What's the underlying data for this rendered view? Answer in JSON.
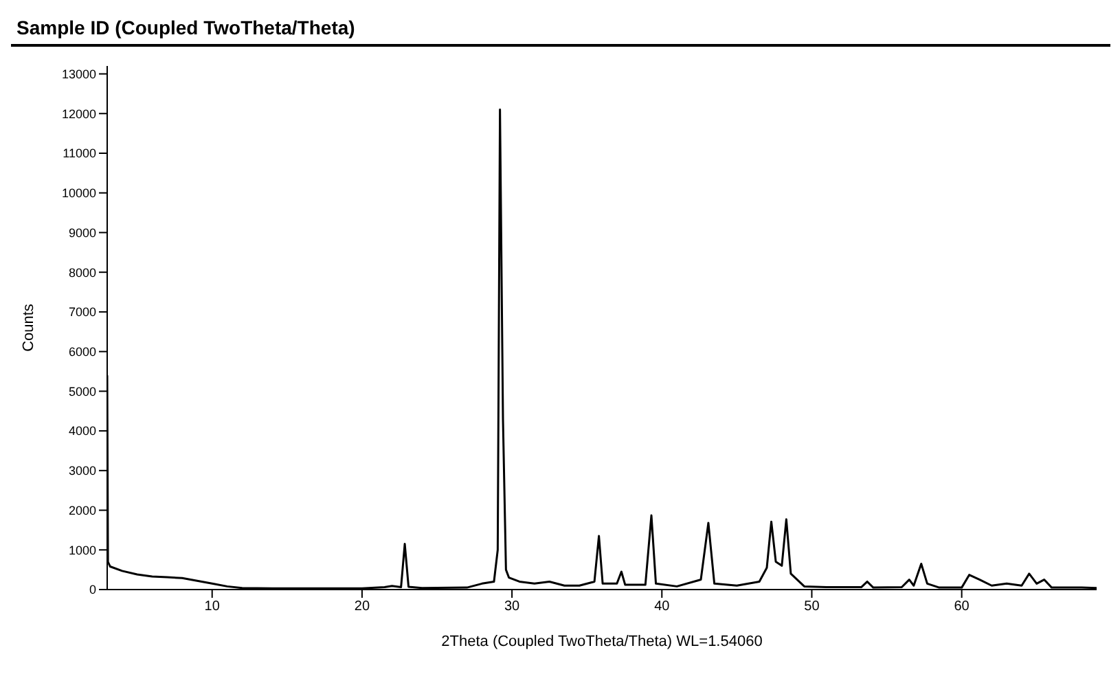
{
  "chart_data": {
    "type": "line",
    "title": "Sample ID (Coupled TwoTheta/Theta)",
    "xlabel": "2Theta (Coupled TwoTheta/Theta) WL=1.54060",
    "ylabel": "Counts",
    "xlim": [
      3,
      69
    ],
    "xticks": [
      10,
      20,
      30,
      40,
      50,
      60
    ],
    "ylim": [
      0,
      13200
    ],
    "yticks": [
      0,
      1000,
      2000,
      3000,
      4000,
      5000,
      6000,
      7000,
      8000,
      9000,
      10000,
      11000,
      12000,
      13000
    ],
    "marker": "none",
    "line_style": "solid",
    "series": [
      {
        "color": "#000000",
        "x": [
          3.0,
          3.05,
          3.2,
          4,
          5,
          6,
          7,
          8,
          9,
          10,
          11,
          12,
          14,
          17,
          20,
          21.5,
          22,
          22.6,
          22.85,
          23.1,
          24,
          27,
          28,
          28.8,
          29.05,
          29.2,
          29.4,
          29.6,
          29.8,
          30.5,
          31.5,
          32.5,
          33.5,
          34.5,
          35.5,
          35.8,
          36.05,
          37.0,
          37.3,
          37.55,
          38.9,
          39.3,
          39.6,
          41,
          42.6,
          43.1,
          43.5,
          45,
          46.5,
          47.0,
          47.3,
          47.6,
          48.0,
          48.3,
          48.6,
          49.5,
          51,
          53.3,
          53.7,
          54.1,
          56.0,
          56.5,
          56.8,
          57.3,
          57.7,
          58.5,
          60,
          60.5,
          61.2,
          62,
          63,
          64.0,
          64.5,
          65.0,
          65.5,
          66,
          68,
          69
        ],
        "values": [
          5400,
          700,
          580,
          470,
          380,
          330,
          310,
          290,
          220,
          150,
          80,
          40,
          30,
          30,
          30,
          60,
          90,
          60,
          1150,
          70,
          40,
          50,
          150,
          200,
          1000,
          12100,
          4300,
          500,
          300,
          200,
          150,
          200,
          100,
          100,
          200,
          1350,
          150,
          150,
          450,
          120,
          120,
          1870,
          150,
          80,
          250,
          1680,
          150,
          100,
          200,
          550,
          1710,
          700,
          600,
          1770,
          400,
          80,
          60,
          60,
          200,
          50,
          60,
          250,
          100,
          650,
          150,
          50,
          50,
          370,
          250,
          100,
          150,
          100,
          400,
          150,
          250,
          50,
          50,
          40
        ]
      }
    ]
  }
}
